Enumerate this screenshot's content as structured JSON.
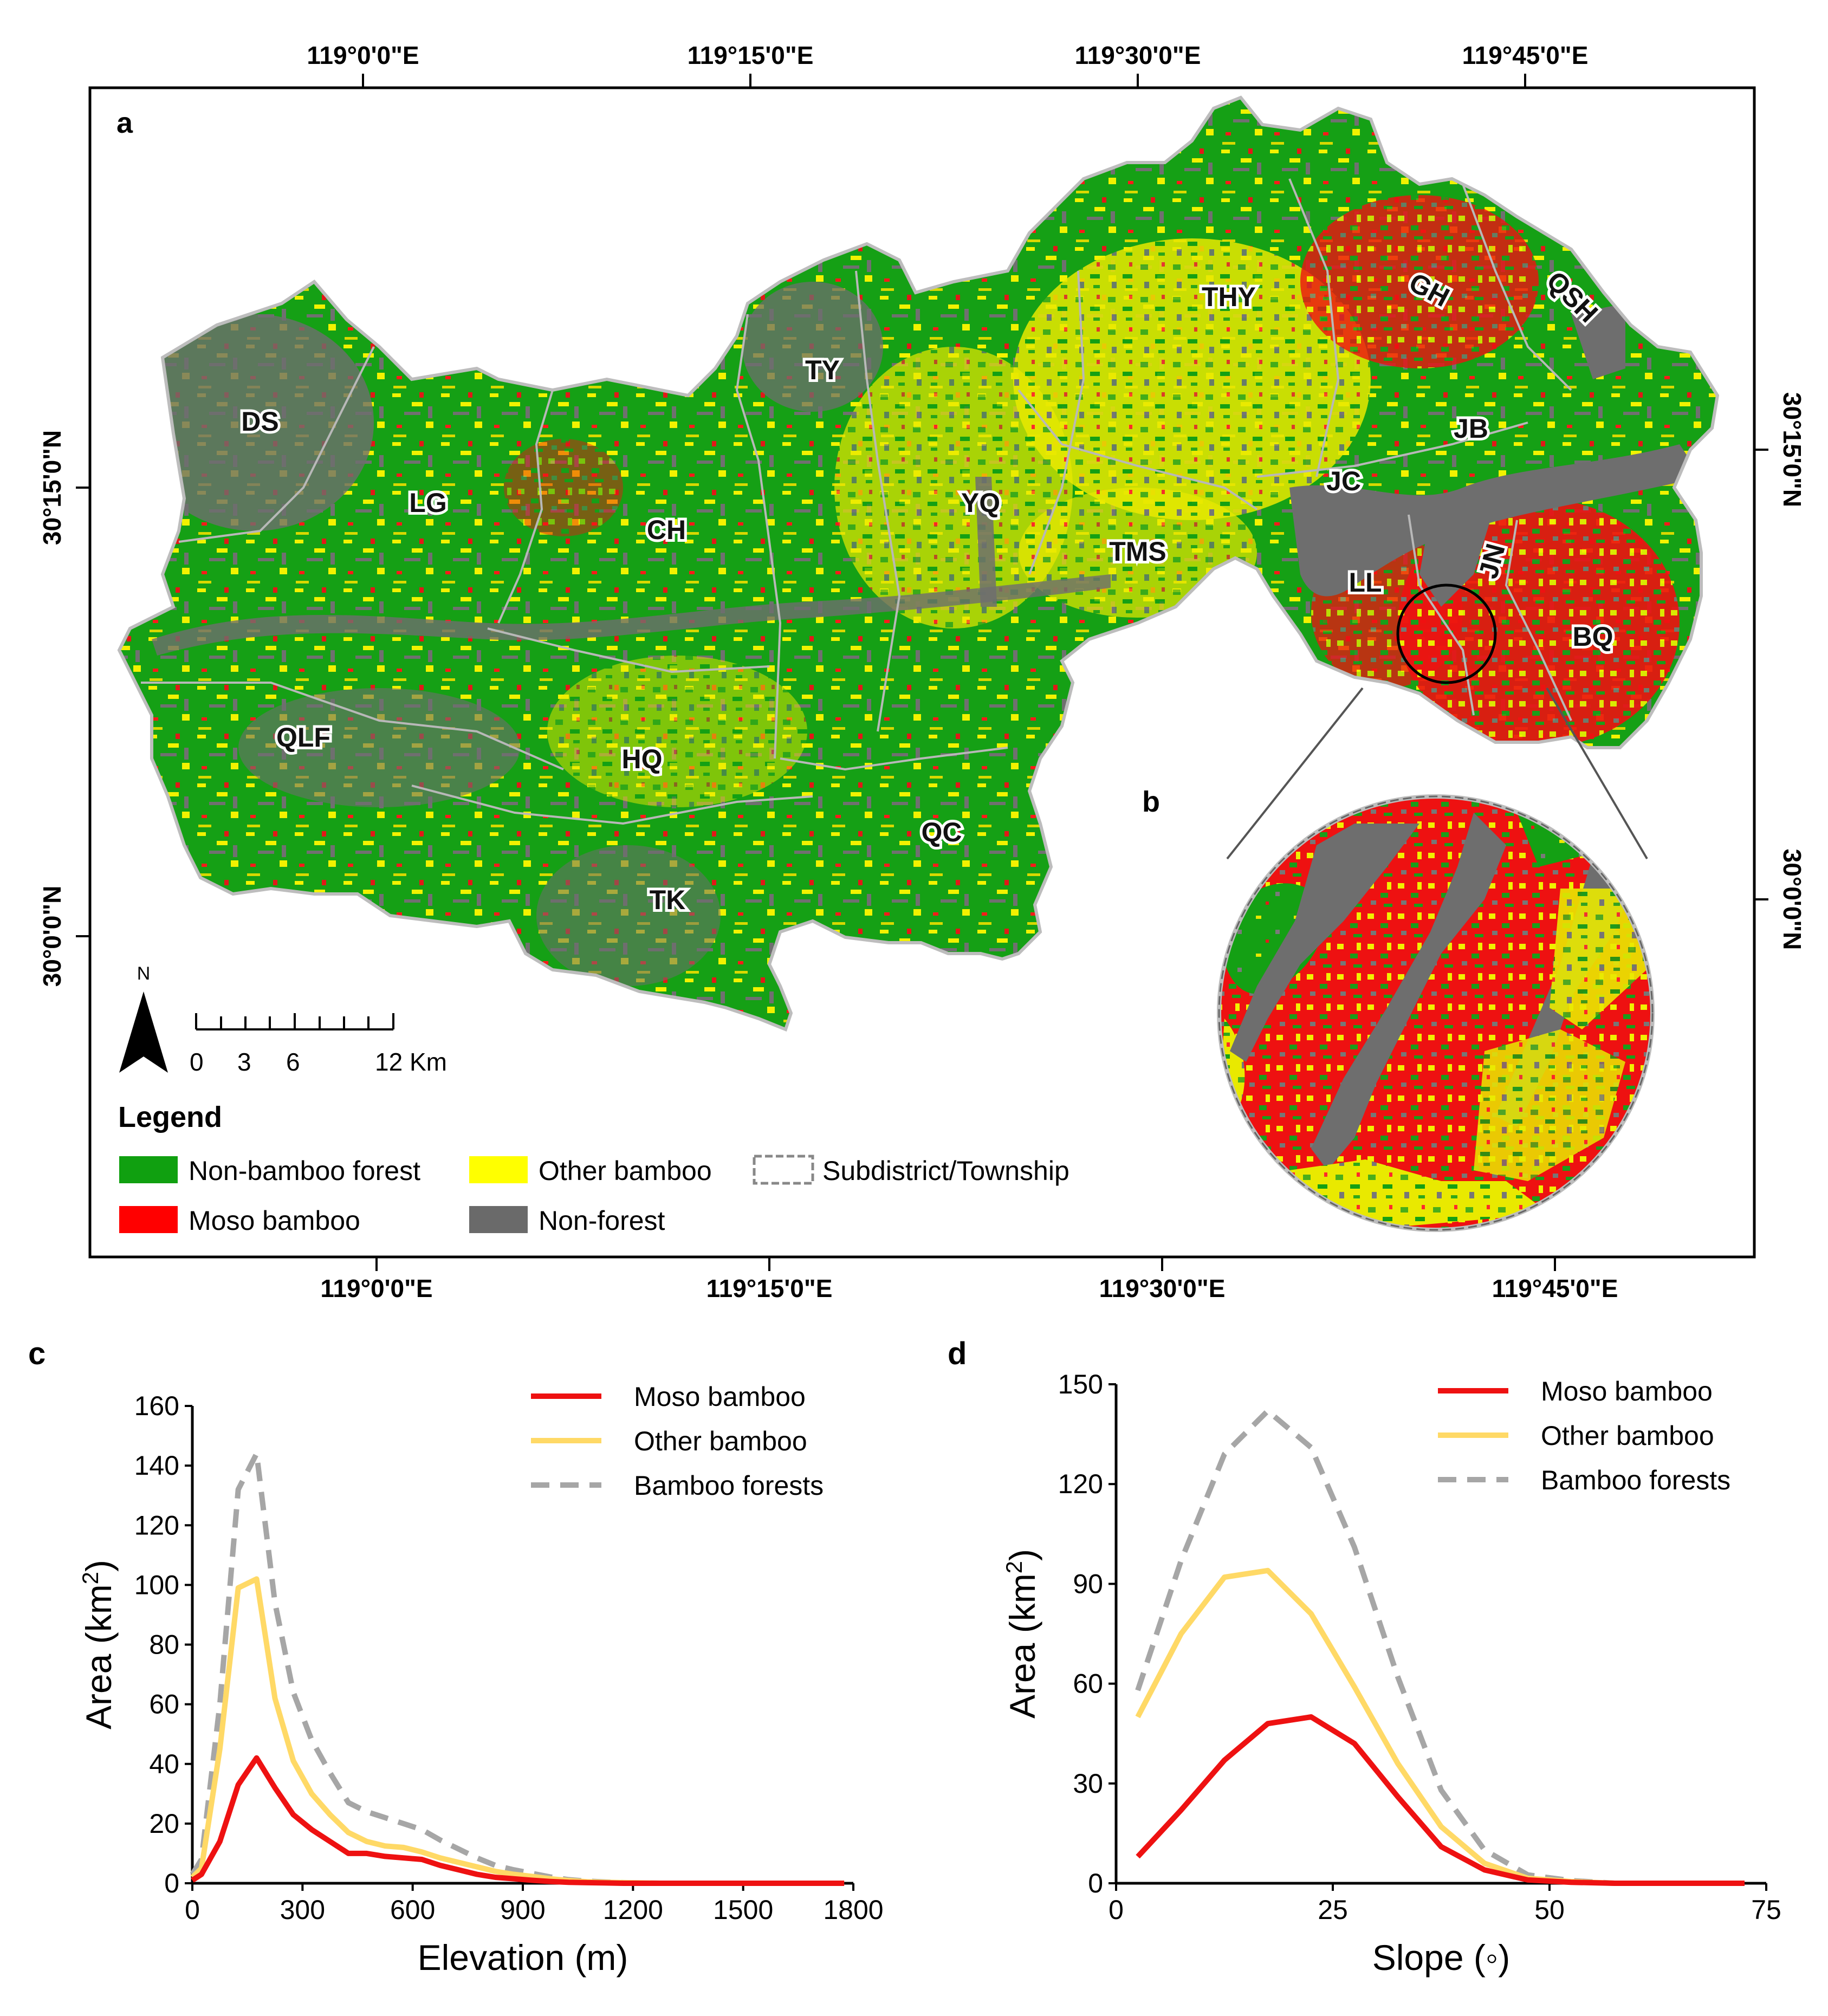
{
  "panel_a": {
    "label": "a",
    "top_ticks": [
      "119°0'0\"E",
      "119°15'0\"E",
      "119°30'0\"E",
      "119°45'0\"E"
    ],
    "bottom_ticks": [
      "119°0'0\"E",
      "119°15'0\"E",
      "119°30'0\"E",
      "119°45'0\"E"
    ],
    "left_ticks": [
      "30°15'0\"N",
      "30°0'0\"N"
    ],
    "right_ticks": [
      "30°15'0\"N",
      "30°0'0\"N"
    ],
    "north_arrow": "N",
    "scale_bar": {
      "labels": [
        "0",
        "3",
        "6",
        "12 Km"
      ]
    },
    "townships": [
      "DS",
      "LG",
      "CH",
      "TY",
      "YQ",
      "THY",
      "GH",
      "QSH",
      "JB",
      "JC",
      "TMS",
      "LL",
      "JN",
      "BQ",
      "QLF",
      "HQ",
      "QC",
      "TK"
    ],
    "legend": {
      "title": "Legend",
      "items": [
        {
          "label": "Non-bamboo forest",
          "color": "#10a010"
        },
        {
          "label": "Other bamboo",
          "color": "#ffff00"
        },
        {
          "label": "Subdistrict/Township",
          "color": "#ffffff"
        },
        {
          "label": "Moso bamboo",
          "color": "#ff0000"
        },
        {
          "label": "Non-forest",
          "color": "#6a6a6a"
        }
      ]
    }
  },
  "panel_b": {
    "label": "b"
  },
  "chart_data": [
    {
      "panel": "c",
      "type": "line",
      "xlabel": "Elevation (m)",
      "ylabel_main": "Area (km",
      "ylabel_sup": "2",
      "ylabel_close": ")",
      "xlim": [
        0,
        1800
      ],
      "ylim": [
        0,
        160
      ],
      "xticks": [
        0,
        300,
        600,
        900,
        1200,
        1500,
        1800
      ],
      "yticks": [
        0,
        20,
        40,
        60,
        80,
        100,
        120,
        140,
        160
      ],
      "series": [
        {
          "name": "Moso bamboo",
          "color": "#ee1111",
          "dash": false,
          "x": [
            0,
            25,
            75,
            125,
            175,
            225,
            275,
            325,
            375,
            425,
            475,
            525,
            575,
            625,
            675,
            725,
            775,
            825,
            875,
            925,
            975,
            1025,
            1075,
            1125,
            1175,
            1225,
            1275,
            1325,
            1375,
            1425,
            1475,
            1525,
            1575,
            1625,
            1675,
            1725,
            1775
          ],
          "values": [
            1,
            3,
            14,
            33,
            42,
            32,
            23,
            18,
            14,
            10,
            10,
            9,
            8.5,
            8,
            6,
            4.5,
            3,
            2,
            1.5,
            1,
            0.6,
            0.3,
            0.2,
            0.1,
            0,
            0,
            0,
            0,
            0,
            0,
            0,
            0,
            0,
            0,
            0,
            0,
            0
          ]
        },
        {
          "name": "Other bamboo",
          "color": "#ffd966",
          "dash": false,
          "x": [
            0,
            25,
            75,
            125,
            175,
            225,
            275,
            325,
            375,
            425,
            475,
            525,
            575,
            625,
            675,
            725,
            775,
            825,
            875,
            925,
            975,
            1025,
            1075,
            1125,
            1175,
            1225,
            1275,
            1325,
            1375,
            1425,
            1475,
            1525,
            1575,
            1625,
            1675,
            1725,
            1775
          ],
          "values": [
            2,
            5,
            45,
            99,
            102,
            62,
            41,
            30,
            23,
            17,
            14,
            12.5,
            12,
            10.5,
            8.5,
            7,
            5.5,
            4,
            3,
            2.3,
            1.5,
            0.9,
            0.5,
            0.3,
            0.2,
            0.1,
            0,
            0,
            0,
            0,
            0,
            0,
            0,
            0,
            0,
            0,
            0
          ]
        },
        {
          "name": "Bamboo forests",
          "color": "#a6a6a6",
          "dash": true,
          "x": [
            0,
            25,
            75,
            125,
            175,
            225,
            275,
            325,
            375,
            425,
            475,
            525,
            575,
            625,
            675,
            725,
            775,
            825,
            875,
            925,
            975,
            1025,
            1075,
            1125,
            1175,
            1225,
            1275,
            1325,
            1375,
            1425,
            1475,
            1525,
            1575,
            1625,
            1675,
            1725,
            1775
          ],
          "values": [
            3,
            8,
            60,
            132,
            144,
            94,
            64,
            48,
            37,
            27,
            24,
            22,
            20,
            18,
            14.5,
            11.5,
            8.5,
            6,
            4.5,
            3.3,
            2.1,
            1.2,
            0.7,
            0.4,
            0.2,
            0.1,
            0,
            0,
            0,
            0,
            0,
            0,
            0,
            0,
            0,
            0,
            0
          ]
        }
      ]
    },
    {
      "panel": "d",
      "type": "line",
      "xlabel": "Slope (◦)",
      "ylabel_main": "Area (km",
      "ylabel_sup": "2",
      "ylabel_close": ")",
      "xlim": [
        0,
        75
      ],
      "ylim": [
        0,
        150
      ],
      "xticks": [
        0,
        25,
        50,
        75
      ],
      "yticks": [
        0,
        30,
        60,
        90,
        120,
        150
      ],
      "series": [
        {
          "name": "Moso bamboo",
          "color": "#ee1111",
          "dash": false,
          "x": [
            2.5,
            7.5,
            12.5,
            17.5,
            22.5,
            27.5,
            32.5,
            37.5,
            42.5,
            47.5,
            52.5,
            57.5,
            62.5,
            67.5,
            72.5
          ],
          "values": [
            8,
            22,
            37,
            48,
            50,
            42,
            26,
            11,
            4,
            1,
            0.3,
            0,
            0,
            0,
            0
          ]
        },
        {
          "name": "Other bamboo",
          "color": "#ffd966",
          "dash": false,
          "x": [
            2.5,
            7.5,
            12.5,
            17.5,
            22.5,
            27.5,
            32.5,
            37.5,
            42.5,
            47.5,
            52.5,
            57.5,
            62.5,
            67.5,
            72.5
          ],
          "values": [
            50,
            75,
            92,
            94,
            81,
            59,
            36,
            17,
            6,
            1.5,
            0.5,
            0,
            0,
            0,
            0
          ]
        },
        {
          "name": "Bamboo forests",
          "color": "#a6a6a6",
          "dash": true,
          "x": [
            2.5,
            7.5,
            12.5,
            17.5,
            22.5,
            27.5,
            32.5,
            37.5,
            42.5,
            47.5,
            52.5,
            57.5,
            62.5,
            67.5,
            72.5
          ],
          "values": [
            58,
            97,
            129,
            142,
            131,
            101,
            62,
            28,
            10,
            2.5,
            0.8,
            0,
            0,
            0,
            0
          ]
        }
      ]
    }
  ]
}
